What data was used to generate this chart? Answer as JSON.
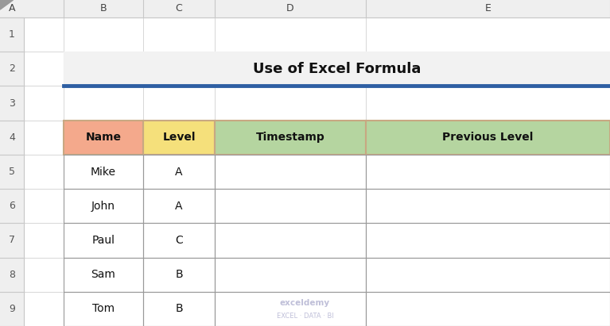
{
  "title": "Use of Excel Formula",
  "title_fontsize": 13,
  "title_fontweight": "bold",
  "col_headers": [
    "Name",
    "Level",
    "Timestamp",
    "Previous Level"
  ],
  "col_header_colors": [
    "#F4A98C",
    "#F5E07B",
    "#B5D5A0",
    "#B5D5A0"
  ],
  "data_rows": [
    [
      "Mike",
      "A",
      "",
      ""
    ],
    [
      "John",
      "A",
      "",
      ""
    ],
    [
      "Paul",
      "C",
      "",
      ""
    ],
    [
      "Sam",
      "B",
      "",
      ""
    ],
    [
      "Tom",
      "B",
      "",
      ""
    ]
  ],
  "col_labels": [
    "A",
    "B",
    "C",
    "D",
    "E"
  ],
  "row_labels": [
    "1",
    "2",
    "3",
    "4",
    "5",
    "6",
    "7",
    "8",
    "9"
  ],
  "bg_color": "#FFFFFF",
  "grid_color": "#C8C8C8",
  "header_bg": "#EFEFEF",
  "blue_line_color": "#2E5FA3",
  "title_bg_color": "#F2F2F2",
  "watermark_line1": "exceldemy",
  "watermark_line2": "EXCEL · DATA · BI",
  "border_color": "#C8A882",
  "table_border_color": "#999999",
  "col_header_border": "#C8A882"
}
